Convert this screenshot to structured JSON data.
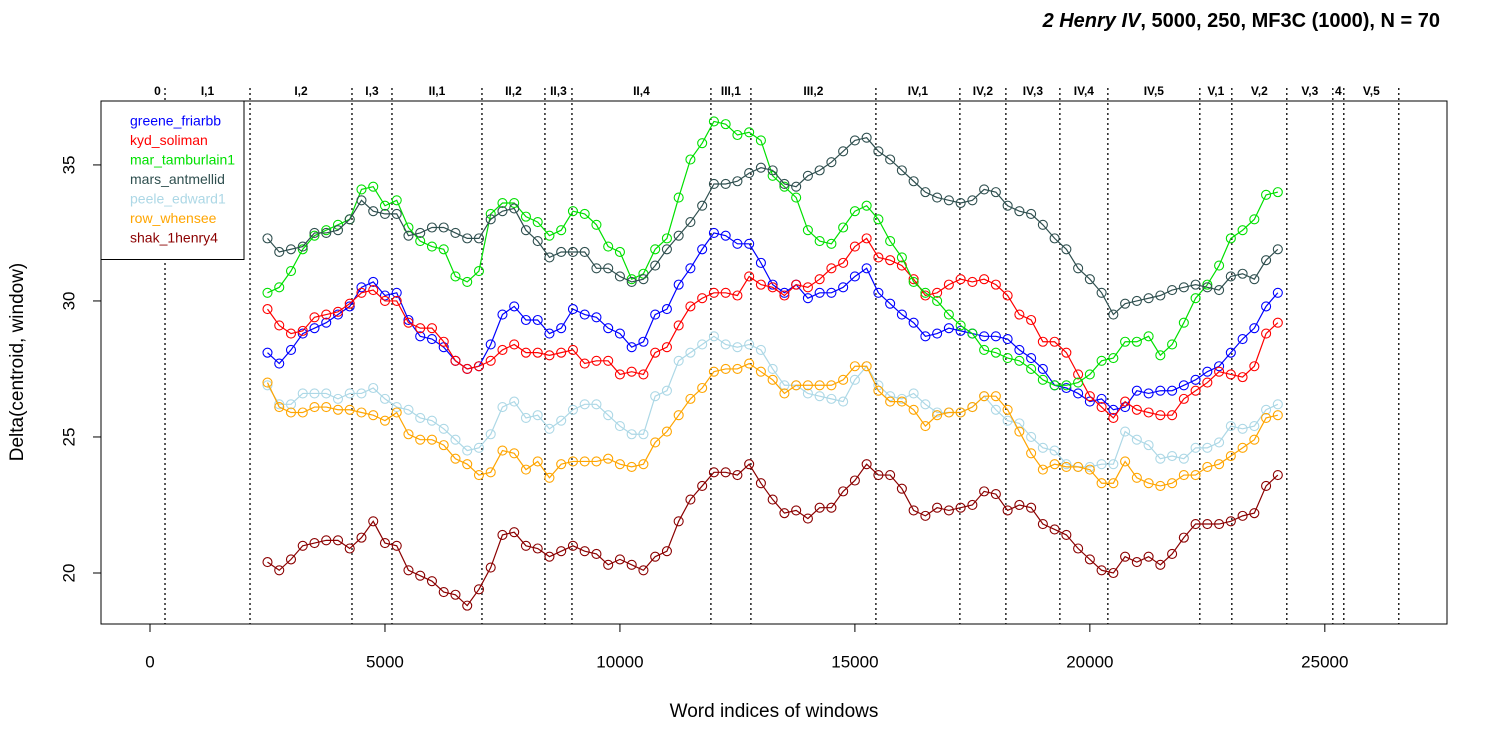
{
  "chart_data": {
    "type": "line",
    "title": [
      "2 Henry IV",
      ", 5000, 250, MF3C (1000), N = 70"
    ],
    "xlabel": "Word indices of windows",
    "ylabel": "Delta(centroid, window)",
    "xlim": [
      -1043,
      27600
    ],
    "ylim": [
      18.125,
      37.35
    ],
    "xticks": [
      0,
      5000,
      10000,
      15000,
      20000,
      25000
    ],
    "yticks": [
      20,
      25,
      30,
      35
    ],
    "legend": "topleft",
    "scenes": {
      "labels": [
        "0",
        "I,1",
        "I,2",
        "I,3",
        "II,1",
        "II,2",
        "II,3",
        "II,4",
        "III,1",
        "III,2",
        "IV,1",
        "IV,2",
        "IV,3",
        "IV,4",
        "IV,5",
        "V,1",
        "V,2",
        "V,3",
        "4",
        "V,5"
      ],
      "ends": [
        319,
        2128,
        4298,
        5149,
        7064,
        8404,
        8979,
        11936,
        12787,
        15447,
        17234,
        18213,
        19362,
        20383,
        22340,
        23021,
        24191,
        25170,
        25404,
        26574
      ]
    },
    "x": [
      2500,
      2750,
      3000,
      3250,
      3500,
      3750,
      4000,
      4250,
      4500,
      4750,
      5000,
      5250,
      5500,
      5750,
      6000,
      6250,
      6500,
      6750,
      7000,
      7250,
      7500,
      7750,
      8000,
      8250,
      8500,
      8750,
      9000,
      9250,
      9500,
      9750,
      10000,
      10250,
      10500,
      10750,
      11000,
      11250,
      11500,
      11750,
      12000,
      12250,
      12500,
      12750,
      13000,
      13250,
      13500,
      13750,
      14000,
      14250,
      14500,
      14750,
      15000,
      15250,
      15500,
      15750,
      16000,
      16250,
      16500,
      16750,
      17000,
      17250,
      17500,
      17750,
      18000,
      18250,
      18500,
      18750,
      19000,
      19250,
      19500,
      19750,
      20000,
      20250,
      20500,
      20750,
      21000,
      21250,
      21500,
      21750,
      22000,
      22250,
      22500,
      22750,
      23000,
      23250,
      23500,
      23750,
      24000
    ],
    "series": [
      {
        "name": "greene_friarbb",
        "color": "#0000ff",
        "values": [
          28.1,
          27.7,
          28.2,
          28.8,
          29.0,
          29.2,
          29.5,
          29.8,
          30.5,
          30.7,
          30.2,
          30.3,
          29.3,
          28.7,
          28.6,
          28.3,
          27.8,
          27.5,
          27.6,
          28.4,
          29.5,
          29.8,
          29.3,
          29.3,
          28.8,
          29.0,
          29.7,
          29.5,
          29.4,
          29.0,
          28.8,
          28.3,
          28.5,
          29.5,
          29.7,
          30.6,
          31.2,
          31.9,
          32.5,
          32.4,
          32.1,
          32.1,
          31.4,
          30.6,
          30.3,
          30.6,
          30.1,
          30.3,
          30.3,
          30.5,
          30.9,
          31.2,
          30.3,
          29.9,
          29.5,
          29.2,
          28.7,
          28.8,
          29.0,
          28.9,
          28.8,
          28.7,
          28.7,
          28.6,
          28.2,
          27.9,
          27.5,
          26.9,
          26.8,
          26.6,
          26.3,
          26.4,
          26.0,
          26.1,
          26.7,
          26.6,
          26.7,
          26.7,
          26.9,
          27.1,
          27.4,
          27.6,
          28.1,
          28.6,
          29.0,
          29.8,
          30.3
        ]
      },
      {
        "name": "kyd_soliman",
        "color": "#ff0000",
        "values": [
          29.7,
          29.1,
          28.8,
          28.9,
          29.4,
          29.5,
          29.6,
          29.9,
          30.3,
          30.4,
          30.0,
          30.0,
          29.2,
          29.0,
          29.0,
          28.5,
          27.8,
          27.5,
          27.6,
          27.8,
          28.2,
          28.4,
          28.1,
          28.1,
          28.0,
          28.1,
          28.2,
          27.7,
          27.8,
          27.8,
          27.3,
          27.4,
          27.3,
          28.1,
          28.3,
          29.1,
          29.8,
          30.1,
          30.3,
          30.3,
          30.2,
          30.9,
          30.6,
          30.5,
          30.2,
          30.6,
          30.5,
          30.8,
          31.2,
          31.4,
          32.0,
          32.3,
          31.6,
          31.5,
          31.3,
          30.8,
          30.2,
          30.3,
          30.6,
          30.8,
          30.7,
          30.8,
          30.6,
          30.2,
          29.5,
          29.3,
          28.5,
          28.5,
          28.1,
          27.3,
          26.5,
          26.1,
          25.7,
          26.3,
          26.0,
          25.9,
          25.8,
          25.8,
          26.4,
          26.7,
          27.0,
          27.4,
          27.3,
          27.2,
          27.6,
          28.8,
          29.2
        ]
      },
      {
        "name": "mar_tamburlain1",
        "color": "#00e000",
        "values": [
          30.3,
          30.5,
          31.1,
          31.9,
          32.4,
          32.6,
          32.8,
          33.0,
          34.1,
          34.2,
          33.5,
          33.7,
          32.7,
          32.2,
          32.0,
          31.9,
          30.9,
          30.7,
          31.1,
          33.2,
          33.6,
          33.6,
          33.1,
          32.9,
          32.4,
          32.6,
          33.3,
          33.2,
          32.8,
          32.0,
          31.8,
          30.8,
          31.0,
          31.9,
          32.3,
          33.8,
          35.2,
          35.8,
          36.6,
          36.5,
          36.1,
          36.2,
          35.9,
          34.6,
          34.2,
          33.8,
          32.6,
          32.2,
          32.1,
          32.7,
          33.3,
          33.5,
          33.0,
          32.2,
          31.6,
          30.7,
          30.3,
          30.0,
          29.5,
          29.1,
          28.8,
          28.2,
          28.1,
          27.9,
          27.8,
          27.5,
          27.1,
          26.9,
          26.9,
          27.0,
          27.3,
          27.8,
          27.9,
          28.5,
          28.5,
          28.7,
          28.0,
          28.4,
          29.2,
          30.1,
          30.6,
          31.3,
          32.3,
          32.6,
          33.0,
          33.9,
          34.0
        ]
      },
      {
        "name": "mars_antmellid",
        "color": "#2f4f4f",
        "values": [
          32.3,
          31.8,
          31.9,
          32.0,
          32.5,
          32.5,
          32.6,
          33.0,
          33.7,
          33.3,
          33.2,
          33.2,
          32.4,
          32.5,
          32.7,
          32.7,
          32.5,
          32.3,
          32.3,
          33.0,
          33.3,
          33.4,
          32.6,
          32.2,
          31.6,
          31.8,
          31.8,
          31.8,
          31.2,
          31.2,
          30.9,
          30.7,
          30.8,
          31.3,
          31.9,
          32.4,
          32.9,
          33.5,
          34.3,
          34.3,
          34.4,
          34.7,
          34.9,
          34.8,
          34.3,
          34.2,
          34.6,
          34.8,
          35.1,
          35.5,
          35.9,
          36.0,
          35.5,
          35.2,
          34.8,
          34.4,
          34.0,
          33.8,
          33.7,
          33.6,
          33.7,
          34.1,
          34.0,
          33.5,
          33.3,
          33.2,
          32.8,
          32.3,
          31.9,
          31.2,
          30.8,
          30.3,
          29.5,
          29.9,
          30.0,
          30.1,
          30.2,
          30.4,
          30.5,
          30.6,
          30.5,
          30.4,
          30.9,
          31.0,
          30.8,
          31.5,
          31.9
        ]
      },
      {
        "name": "peele_edward1",
        "color": "#add8e6",
        "values": [
          26.9,
          26.2,
          26.2,
          26.6,
          26.6,
          26.6,
          26.4,
          26.6,
          26.6,
          26.8,
          26.4,
          26.1,
          26.0,
          25.7,
          25.6,
          25.3,
          24.9,
          24.5,
          24.6,
          25.1,
          26.1,
          26.3,
          25.7,
          25.8,
          25.3,
          25.6,
          26.0,
          26.2,
          26.2,
          25.8,
          25.4,
          25.1,
          25.1,
          26.5,
          26.7,
          27.8,
          28.1,
          28.4,
          28.7,
          28.4,
          28.3,
          28.4,
          28.2,
          27.5,
          26.9,
          26.9,
          26.6,
          26.5,
          26.4,
          26.3,
          27.1,
          27.6,
          26.9,
          26.5,
          26.4,
          26.6,
          26.2,
          25.9,
          25.9,
          25.9,
          26.1,
          26.5,
          26.0,
          25.6,
          25.5,
          25.0,
          24.6,
          24.5,
          24.0,
          23.9,
          23.9,
          24.0,
          24.0,
          25.2,
          24.9,
          24.7,
          24.2,
          24.3,
          24.2,
          24.6,
          24.6,
          24.8,
          25.4,
          25.3,
          25.4,
          26.0,
          26.2
        ]
      },
      {
        "name": "row_whensee",
        "color": "#ffa500",
        "values": [
          27.0,
          26.1,
          25.9,
          25.9,
          26.1,
          26.1,
          26.0,
          26.0,
          25.9,
          25.8,
          25.6,
          25.9,
          25.1,
          24.9,
          24.9,
          24.7,
          24.2,
          24.0,
          23.6,
          23.7,
          24.5,
          24.4,
          23.8,
          24.1,
          23.5,
          24.0,
          24.1,
          24.1,
          24.1,
          24.2,
          24.0,
          23.9,
          24.0,
          24.8,
          25.2,
          25.8,
          26.4,
          26.8,
          27.4,
          27.5,
          27.5,
          27.7,
          27.4,
          27.1,
          26.6,
          26.9,
          26.9,
          26.9,
          26.9,
          27.1,
          27.6,
          27.6,
          26.7,
          26.3,
          26.3,
          26.0,
          25.4,
          25.8,
          25.9,
          25.9,
          26.1,
          26.5,
          26.5,
          26.0,
          25.2,
          24.4,
          23.8,
          24.0,
          23.9,
          23.9,
          23.8,
          23.3,
          23.3,
          24.1,
          23.5,
          23.3,
          23.2,
          23.3,
          23.6,
          23.6,
          23.9,
          24.0,
          24.3,
          24.6,
          24.9,
          25.7,
          25.8
        ]
      },
      {
        "name": "shak_1henry4",
        "color": "#8b0000",
        "values": [
          20.4,
          20.1,
          20.5,
          21.0,
          21.1,
          21.2,
          21.2,
          20.9,
          21.3,
          21.9,
          21.1,
          21.0,
          20.1,
          19.9,
          19.7,
          19.3,
          19.2,
          18.8,
          19.4,
          20.2,
          21.4,
          21.5,
          21.0,
          20.9,
          20.6,
          20.8,
          21.0,
          20.8,
          20.7,
          20.3,
          20.5,
          20.3,
          20.1,
          20.6,
          20.8,
          21.9,
          22.7,
          23.2,
          23.7,
          23.7,
          23.6,
          24.0,
          23.3,
          22.7,
          22.2,
          22.3,
          22.0,
          22.4,
          22.4,
          23.0,
          23.4,
          24.0,
          23.6,
          23.6,
          23.1,
          22.3,
          22.1,
          22.4,
          22.3,
          22.4,
          22.5,
          23.0,
          22.9,
          22.3,
          22.5,
          22.4,
          21.8,
          21.6,
          21.4,
          20.9,
          20.5,
          20.1,
          20.0,
          20.6,
          20.4,
          20.6,
          20.3,
          20.7,
          21.3,
          21.8,
          21.8,
          21.8,
          21.9,
          22.1,
          22.2,
          23.2,
          23.6
        ]
      }
    ]
  }
}
